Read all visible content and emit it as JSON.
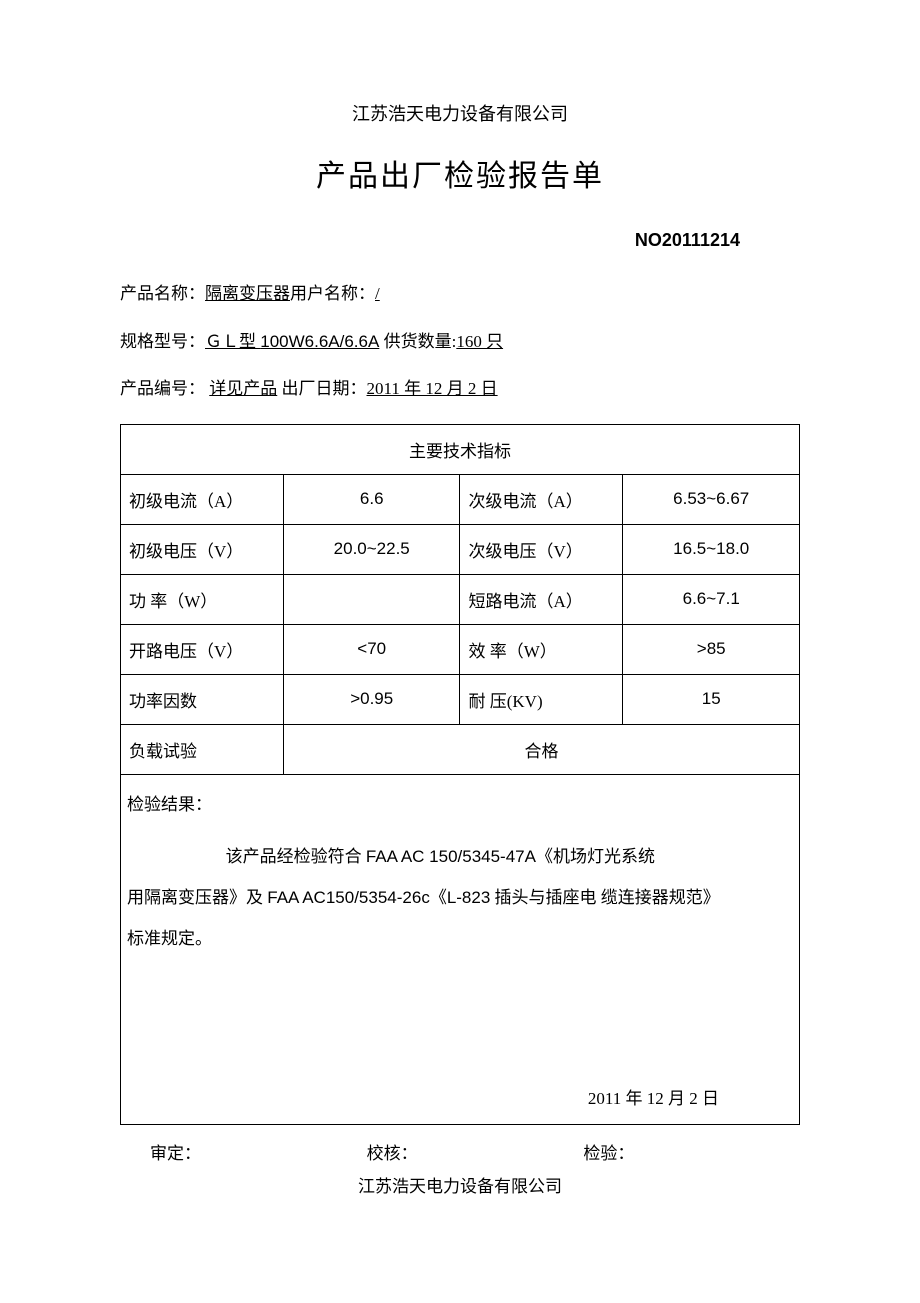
{
  "header": {
    "company": "江苏浩天电力设备有限公司",
    "title": "产品出厂检验报告单",
    "doc_no": "NO20111214"
  },
  "info": {
    "product_label": "产品名称：",
    "product_value": "隔离变压器",
    "user_label": "用户名称：",
    "user_value": "/",
    "model_label": "规格型号：",
    "model_value_prefix": "ＧＬ",
    "model_value_mid": "型 ",
    "model_value_latin": "100W6.6A/6.6A",
    "qty_label": " 供货数量:",
    "qty_value": "160 只",
    "pn_label": "产品编号：",
    "pn_value": "详见产品",
    "date_label": " 出厂日期：",
    "date_value": "2011 年 12 月 2 日"
  },
  "table": {
    "title": "主要技术指标",
    "rows": [
      {
        "l1": "初级电流（A）",
        "v1": "6.6",
        "l2": "次级电流（A）",
        "v2": "6.53~6.67"
      },
      {
        "l1": "初级电压（V）",
        "v1": "20.0~22.5",
        "l2": "次级电压（V）",
        "v2": "16.5~18.0"
      },
      {
        "l1": "功 率（W）",
        "v1": "",
        "l2": "短路电流（A）",
        "v2": "6.6~7.1"
      },
      {
        "l1": "开路电压（V）",
        "v1": "<70",
        "l2": "效 率（W）",
        "v2": ">85"
      },
      {
        "l1": "功率因数",
        "v1": ">0.95",
        "l2": "耐 压(KV)",
        "v2": "15"
      }
    ],
    "load_test_label": "负载试验",
    "load_test_value": "合格"
  },
  "result": {
    "heading": "检验结果：",
    "line1_pre": "该产品经检验符合 ",
    "line1_std1": "FAA AC 150/5345-47A",
    "line1_post": "《机场灯光系统",
    "line2_pre": "用隔离变压器》及 ",
    "line2_std2": "FAA AC150/5354-26c",
    "line2_mid": "《",
    "line2_l823": "L-823",
    "line2_post": " 插头与插座电 缆连接器规范》",
    "line3": "标准规定。",
    "date": "2011 年 12 月 2 日"
  },
  "sign": {
    "s1": "审定：",
    "s2": "校核：",
    "s3": "检验："
  },
  "footer": {
    "company": "江苏浩天电力设备有限公司"
  }
}
